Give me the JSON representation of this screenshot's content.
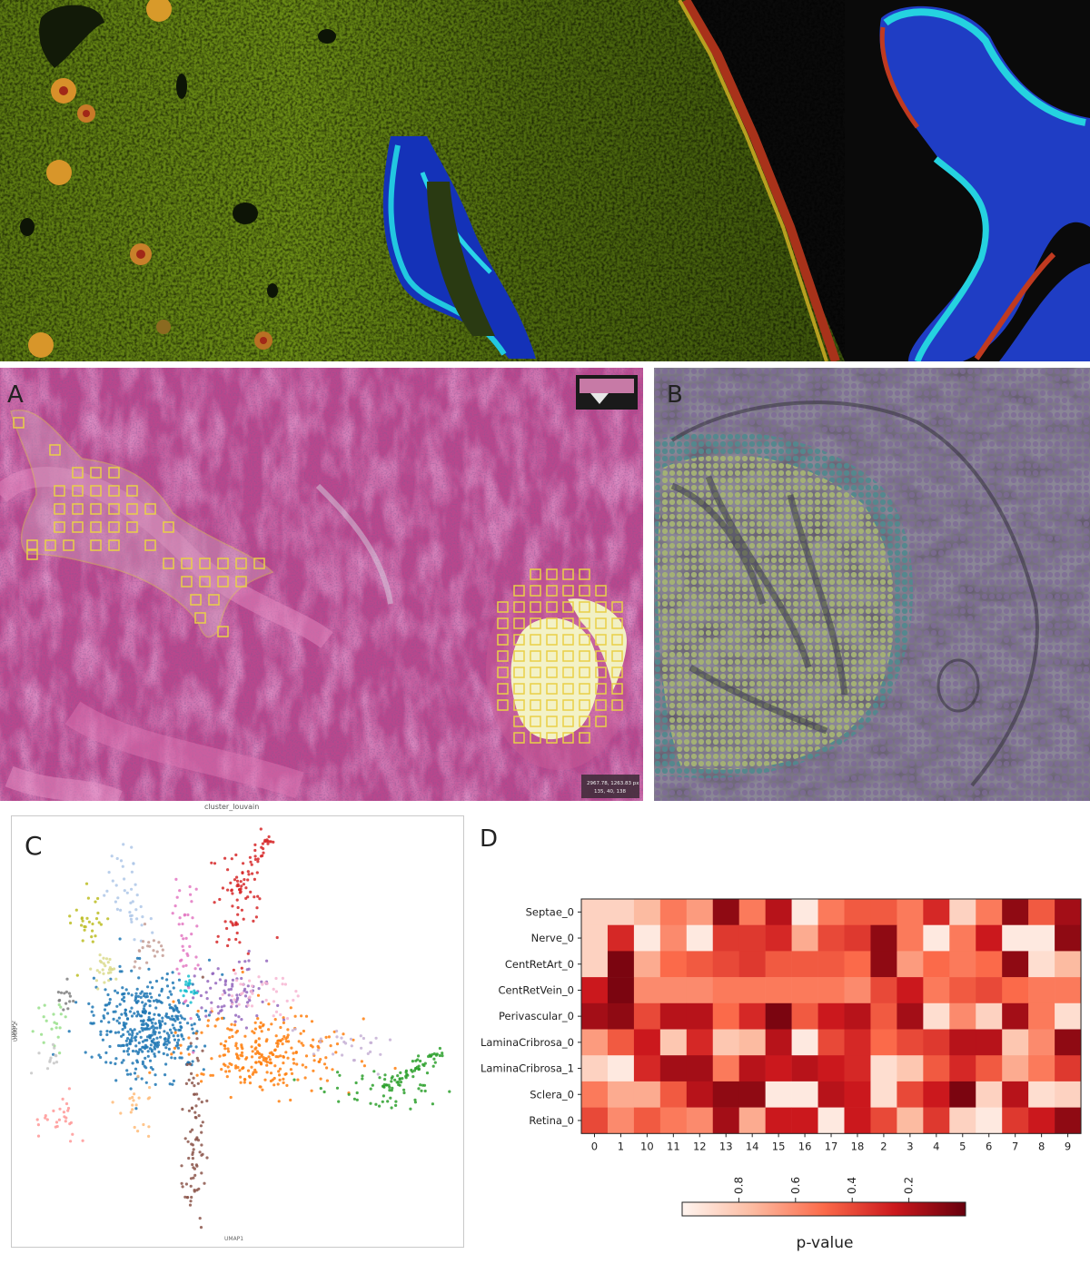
{
  "panels": {
    "a_label": "A",
    "b_label": "B",
    "c_label": "C",
    "d_label": "D",
    "a_caption": "cluster_louvain",
    "a_scale_text_1": "2967.78, 1263.83 px",
    "a_scale_text_2": "135, 40, 138"
  },
  "umap": {
    "xlabel": "UMAP1",
    "ylabel": "UMAP2",
    "cluster_colors": [
      "#1f77b4",
      "#ff7f0e",
      "#2ca02c",
      "#d62728",
      "#9467bd",
      "#8c564b",
      "#e377c2",
      "#7f7f7f",
      "#bcbd22",
      "#17becf",
      "#aec7e8",
      "#ffbb78",
      "#98df8a",
      "#ff9896",
      "#c5b0d5",
      "#c49c94",
      "#f7b6d2",
      "#c7c7c7",
      "#dbdb8d"
    ]
  },
  "chart_data": {
    "type": "heatmap",
    "rows": [
      "Septae_0",
      "Nerve_0",
      "CentRetArt_0",
      "CentRetVein_0",
      "Perivascular_0",
      "LaminaCribrosa_0",
      "LaminaCribrosa_1",
      "Sclera_0",
      "Retina_0"
    ],
    "columns": [
      "0",
      "1",
      "10",
      "11",
      "12",
      "13",
      "14",
      "15",
      "16",
      "17",
      "18",
      "2",
      "3",
      "4",
      "5",
      "6",
      "7",
      "8",
      "9"
    ],
    "values": [
      [
        0.85,
        0.85,
        0.75,
        0.55,
        0.65,
        0.1,
        0.55,
        0.2,
        0.95,
        0.55,
        0.45,
        0.45,
        0.55,
        0.3,
        0.85,
        0.55,
        0.1,
        0.45,
        0.15
      ],
      [
        0.85,
        0.3,
        0.95,
        0.6,
        0.95,
        0.35,
        0.35,
        0.3,
        0.7,
        0.4,
        0.35,
        0.1,
        0.55,
        0.95,
        0.55,
        0.25,
        0.95,
        0.95,
        0.1
      ],
      [
        0.85,
        0.05,
        0.7,
        0.5,
        0.45,
        0.4,
        0.35,
        0.45,
        0.45,
        0.45,
        0.5,
        0.1,
        0.65,
        0.5,
        0.55,
        0.5,
        0.1,
        0.9,
        0.75
      ],
      [
        0.25,
        0.05,
        0.6,
        0.6,
        0.6,
        0.55,
        0.55,
        0.55,
        0.55,
        0.55,
        0.6,
        0.4,
        0.25,
        0.55,
        0.45,
        0.4,
        0.5,
        0.55,
        0.55
      ],
      [
        0.15,
        0.1,
        0.4,
        0.2,
        0.2,
        0.5,
        0.3,
        0.05,
        0.45,
        0.25,
        0.2,
        0.45,
        0.15,
        0.9,
        0.6,
        0.85,
        0.15,
        0.55,
        0.9
      ],
      [
        0.65,
        0.45,
        0.25,
        0.8,
        0.3,
        0.8,
        0.75,
        0.2,
        0.95,
        0.4,
        0.3,
        0.5,
        0.4,
        0.35,
        0.2,
        0.2,
        0.8,
        0.6,
        0.1
      ],
      [
        0.85,
        0.95,
        0.3,
        0.15,
        0.15,
        0.55,
        0.2,
        0.25,
        0.2,
        0.25,
        0.3,
        0.9,
        0.8,
        0.45,
        0.3,
        0.45,
        0.7,
        0.55,
        0.35
      ],
      [
        0.55,
        0.7,
        0.7,
        0.45,
        0.2,
        0.1,
        0.1,
        0.95,
        0.95,
        0.2,
        0.25,
        0.9,
        0.4,
        0.25,
        0.05,
        0.85,
        0.2,
        0.9,
        0.85
      ],
      [
        0.4,
        0.6,
        0.45,
        0.55,
        0.6,
        0.15,
        0.7,
        0.25,
        0.25,
        0.95,
        0.25,
        0.4,
        0.75,
        0.35,
        0.85,
        0.95,
        0.35,
        0.25,
        0.1
      ]
    ],
    "colorbar": {
      "label": "p-value",
      "ticks": [
        "0.8",
        "0.6",
        "0.4",
        "0.2"
      ],
      "tick_values": [
        0.8,
        0.6,
        0.4,
        0.2
      ],
      "range": [
        1.0,
        0.0
      ],
      "colormap": "Reds"
    }
  }
}
